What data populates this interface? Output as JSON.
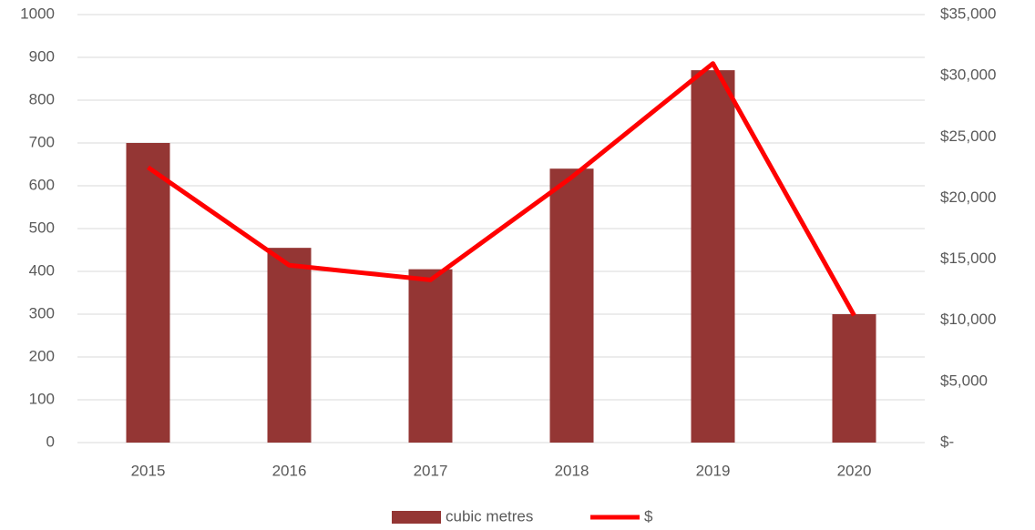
{
  "chart_data": {
    "type": "bar_line",
    "categories": [
      "2015",
      "2016",
      "2017",
      "2018",
      "2019",
      "2020"
    ],
    "series": [
      {
        "name": "cubic metres",
        "type": "bar",
        "color": "#943634",
        "values": [
          700,
          455,
          405,
          640,
          870,
          300
        ]
      },
      {
        "name": "$",
        "type": "line",
        "axis": "y2",
        "color": "#ff0000",
        "values": [
          22500,
          14500,
          13300,
          21700,
          31000,
          10400
        ]
      }
    ],
    "ylim": [
      0,
      1000
    ],
    "yticks": [
      0,
      100,
      200,
      300,
      400,
      500,
      600,
      700,
      800,
      900,
      1000
    ],
    "y2lim": [
      0,
      35000
    ],
    "y2ticks": [
      {
        "value": 0,
        "label": "$-"
      },
      {
        "value": 5000,
        "label": "$5,000"
      },
      {
        "value": 10000,
        "label": "$10,000"
      },
      {
        "value": 15000,
        "label": "$15,000"
      },
      {
        "value": 20000,
        "label": "$20,000"
      },
      {
        "value": 25000,
        "label": "$25,000"
      },
      {
        "value": 30000,
        "label": "$30,000"
      },
      {
        "value": 35000,
        "label": "$35,000"
      }
    ],
    "grid": true,
    "legend": "bottom"
  }
}
